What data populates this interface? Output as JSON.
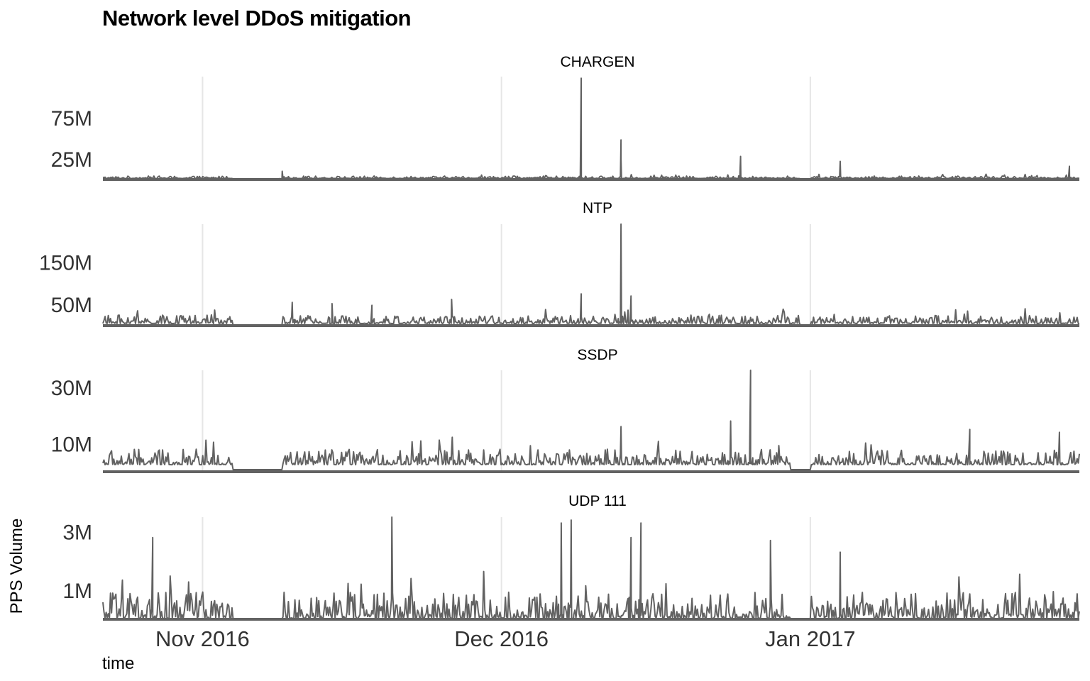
{
  "title": "Network level DDoS mitigation",
  "colors": {
    "line": "#626262",
    "grid": "#e6e6e6",
    "text": "#333333"
  },
  "chart_data": {
    "type": "line",
    "title": "Network level DDoS mitigation",
    "xlabel": "time",
    "ylabel": "PPS Volume",
    "grid": "vertical major gridlines only",
    "x_range": [
      "2016-10-22",
      "2017-01-28"
    ],
    "x_ticks": [
      {
        "date": "2016-11-01",
        "label": "Nov 2016"
      },
      {
        "date": "2016-12-01",
        "label": "Dec 2016"
      },
      {
        "date": "2017-01-01",
        "label": "Jan 2017"
      }
    ],
    "facets": [
      {
        "name": "CHARGEN",
        "ylim": [
          0,
          125000000
        ],
        "yticks": [
          {
            "value": 75000000,
            "label": "75M"
          },
          {
            "value": 25000000,
            "label": "25M"
          }
        ],
        "baseline": 1200000,
        "noise": 3000000,
        "gaps": [
          [
            "2016-11-04",
            "2016-11-09"
          ],
          [
            "2016-12-31",
            "2017-01-01"
          ]
        ],
        "spikes": [
          {
            "date": "2016-12-09",
            "value": 123000000
          },
          {
            "date": "2016-12-13",
            "value": 48000000
          },
          {
            "date": "2016-12-13",
            "value": 25000000
          },
          {
            "date": "2016-12-25",
            "value": 28000000
          },
          {
            "date": "2017-01-04",
            "value": 22000000
          },
          {
            "date": "2016-11-09",
            "value": 10000000
          },
          {
            "date": "2017-01-27",
            "value": 16000000
          }
        ]
      },
      {
        "name": "NTP",
        "ylim": [
          0,
          240000000
        ],
        "yticks": [
          {
            "value": 150000000,
            "label": "150M"
          },
          {
            "value": 50000000,
            "label": "50M"
          }
        ],
        "baseline": 5000000,
        "noise": 20000000,
        "gaps": [
          [
            "2016-11-04",
            "2016-11-09"
          ],
          [
            "2016-12-31",
            "2017-01-01"
          ]
        ],
        "spikes": [
          {
            "date": "2016-12-13",
            "value": 240000000
          },
          {
            "date": "2016-12-09",
            "value": 75000000
          },
          {
            "date": "2016-12-14",
            "value": 70000000
          },
          {
            "date": "2016-11-26",
            "value": 62000000
          },
          {
            "date": "2016-11-10",
            "value": 55000000
          },
          {
            "date": "2016-11-14",
            "value": 52000000
          },
          {
            "date": "2016-11-18",
            "value": 48000000
          }
        ]
      },
      {
        "name": "SSDP",
        "ylim": [
          0,
          36000000
        ],
        "yticks": [
          {
            "value": 30000000,
            "label": "30M"
          },
          {
            "value": 10000000,
            "label": "10M"
          }
        ],
        "baseline": 2500000,
        "noise": 5500000,
        "gaps": [
          [
            "2016-11-04",
            "2016-11-09"
          ],
          [
            "2016-12-30",
            "2017-01-01"
          ]
        ],
        "spikes": [
          {
            "date": "2016-12-26",
            "value": 36000000
          },
          {
            "date": "2016-12-24",
            "value": 18000000
          },
          {
            "date": "2016-12-13",
            "value": 16000000
          },
          {
            "date": "2017-01-17",
            "value": 15000000
          },
          {
            "date": "2017-01-26",
            "value": 14000000
          }
        ]
      },
      {
        "name": "UDP 111",
        "ylim": [
          0,
          3500000
        ],
        "yticks": [
          {
            "value": 3000000,
            "label": "3M"
          },
          {
            "value": 1000000,
            "label": "1M"
          }
        ],
        "baseline": 30000,
        "noise": 900000,
        "gaps": [
          [
            "2016-11-04",
            "2016-11-09"
          ],
          [
            "2016-12-30",
            "2017-01-01"
          ]
        ],
        "spikes": [
          {
            "date": "2016-11-20",
            "value": 3500000
          },
          {
            "date": "2016-12-07",
            "value": 3300000
          },
          {
            "date": "2016-12-08",
            "value": 3400000
          },
          {
            "date": "2016-12-14",
            "value": 2800000
          },
          {
            "date": "2016-12-15",
            "value": 3300000
          },
          {
            "date": "2016-12-28",
            "value": 2700000
          },
          {
            "date": "2016-10-27",
            "value": 2800000
          },
          {
            "date": "2017-01-04",
            "value": 2300000
          }
        ]
      }
    ]
  }
}
